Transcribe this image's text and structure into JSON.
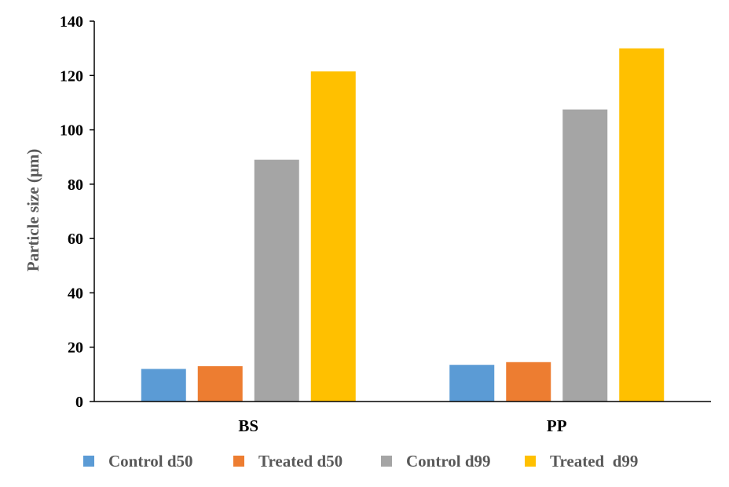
{
  "chart_data": {
    "type": "bar",
    "categories": [
      "BS",
      "PP"
    ],
    "series": [
      {
        "name": "Control d50",
        "values": [
          12,
          13.5
        ],
        "color": "#5B9BD5"
      },
      {
        "name": "Treated d50",
        "values": [
          13,
          14.5
        ],
        "color": "#ED7D31"
      },
      {
        "name": "Control d99",
        "values": [
          89,
          107.5
        ],
        "color": "#A5A5A5"
      },
      {
        "name": "Treated  d99",
        "values": [
          121.5,
          130
        ],
        "color": "#FFC000"
      }
    ],
    "ylabel": "Particle size (μm)",
    "ylim": [
      0,
      140
    ],
    "yticks": [
      0,
      20,
      40,
      60,
      80,
      100,
      120,
      140
    ],
    "grid": false,
    "legend": "bottom"
  }
}
